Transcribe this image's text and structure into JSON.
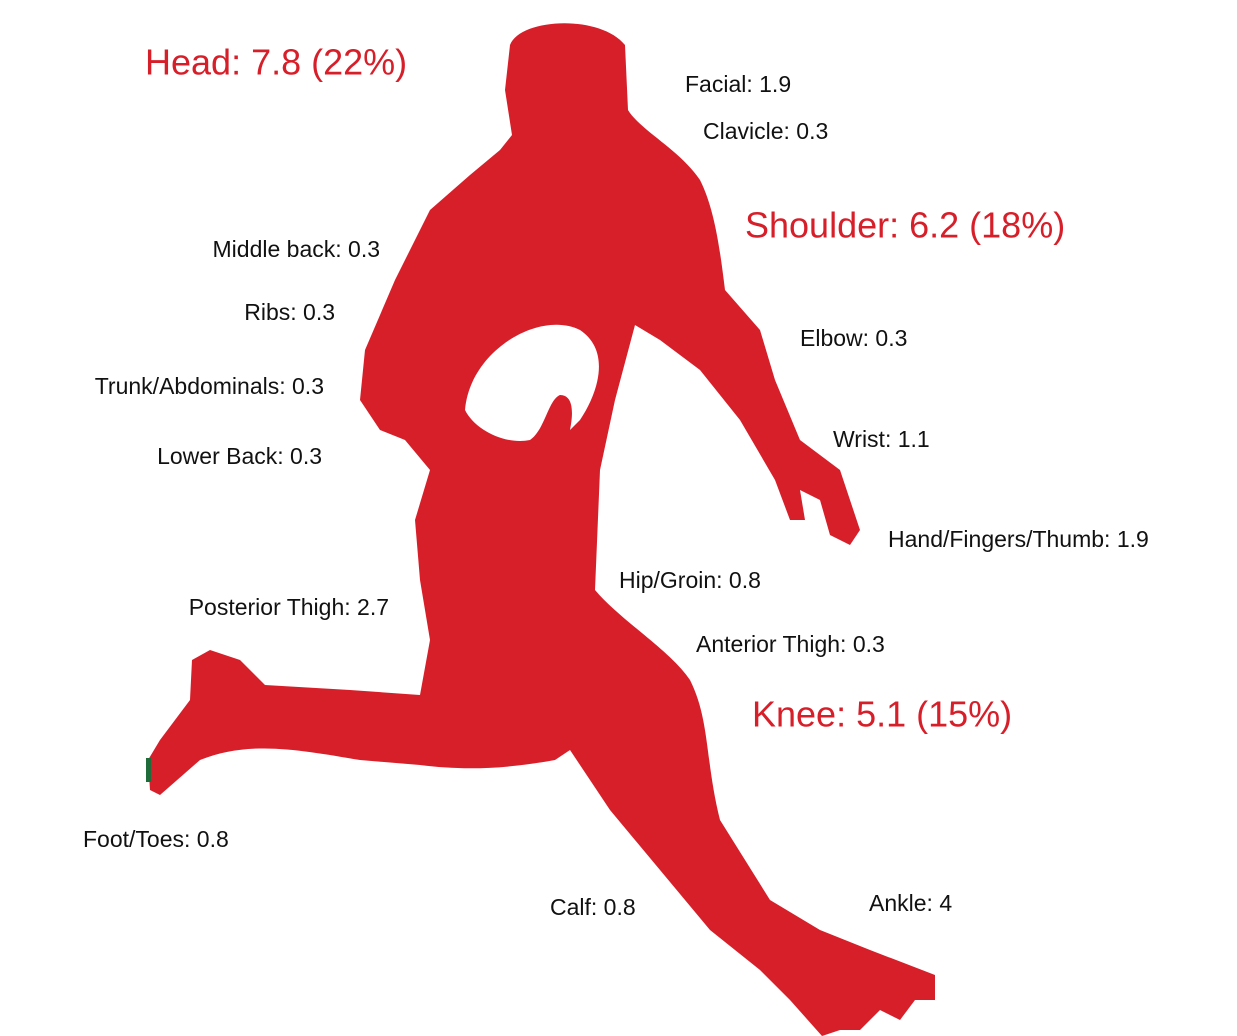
{
  "labels": {
    "head": "Head: 7.8 (22%)",
    "facial": "Facial: 1.9",
    "clavicle": "Clavicle: 0.3",
    "shoulder": "Shoulder: 6.2 (18%)",
    "middle_back": "Middle back: 0.3",
    "ribs": "Ribs: 0.3",
    "trunk": "Trunk/Abdominals: 0.3",
    "lower_back": "Lower Back: 0.3",
    "elbow": "Elbow: 0.3",
    "wrist": "Wrist: 1.1",
    "hand": "Hand/Fingers/Thumb: 1.9",
    "hip": "Hip/Groin: 0.8",
    "posterior_thigh": "Posterior Thigh: 2.7",
    "anterior_thigh": "Anterior Thigh: 0.3",
    "knee": "Knee: 5.1 (15%)",
    "foot": "Foot/Toes: 0.8",
    "calf": "Calf: 0.8",
    "ankle": "Ankle: 4"
  }
}
